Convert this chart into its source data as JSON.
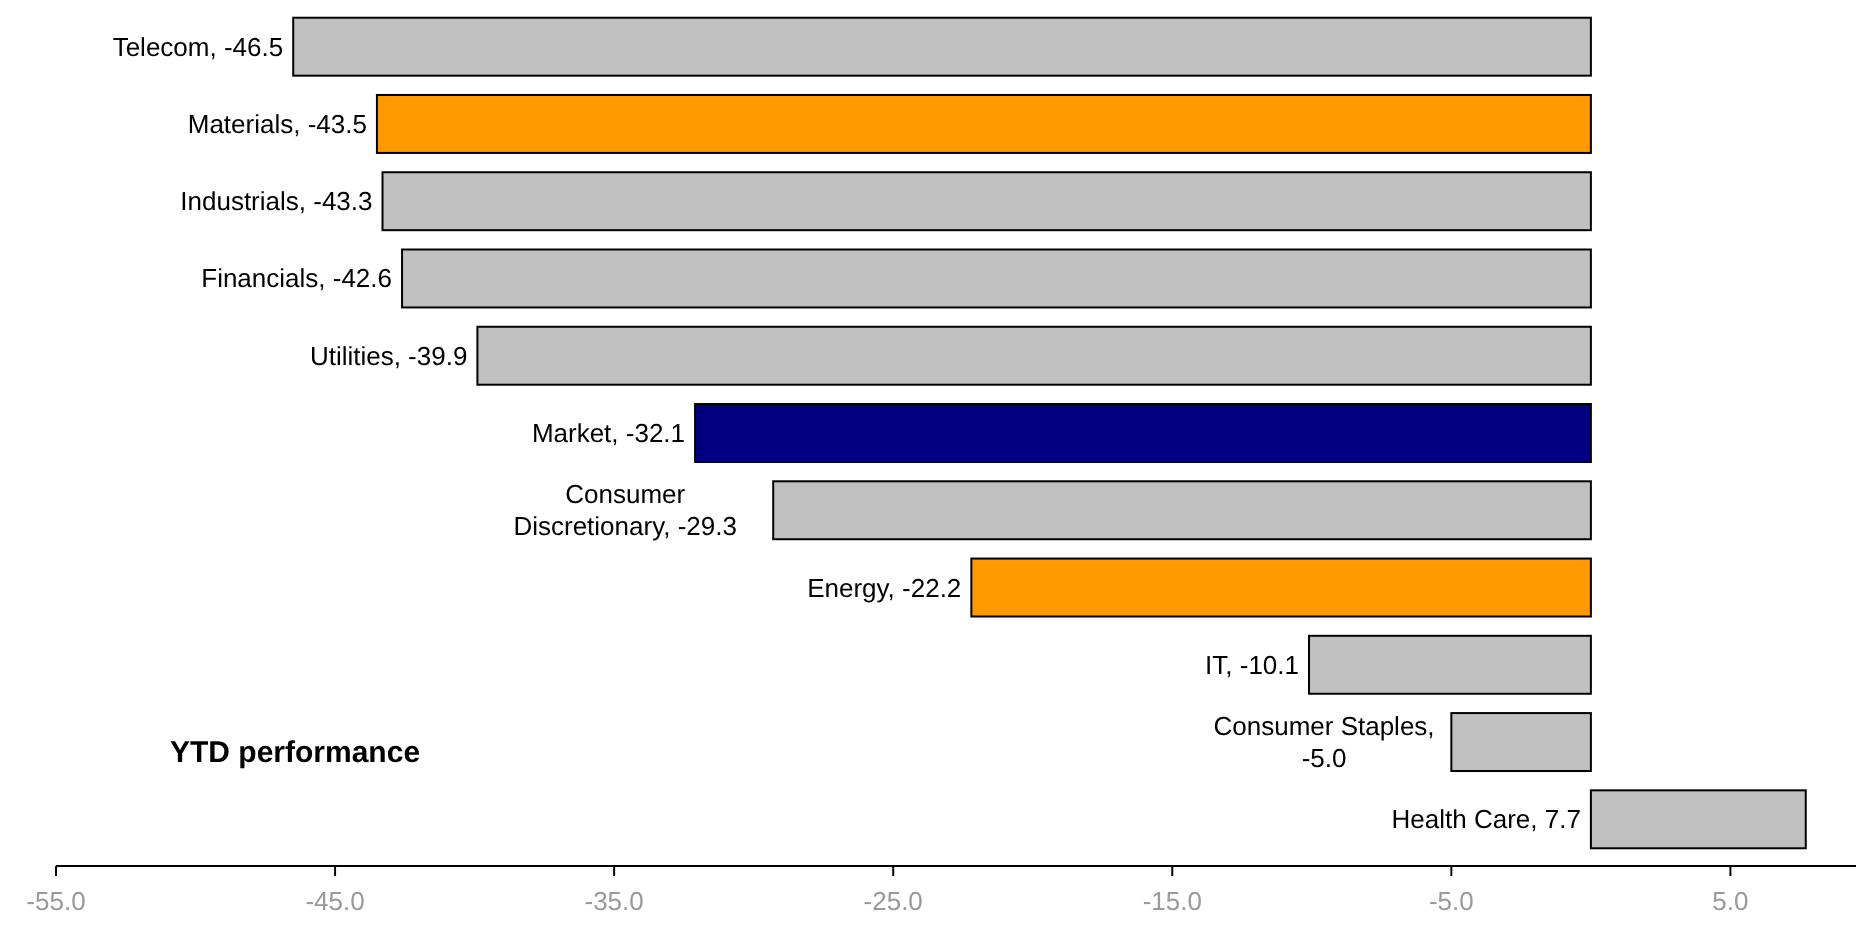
{
  "chart_data": {
    "type": "bar",
    "orientation": "horizontal",
    "title": "YTD performance",
    "categories": [
      "Telecom, -46.5",
      "Materials, -43.5",
      "Industrials, -43.3",
      "Financials, -42.6",
      "Utilities, -39.9",
      "Market, -32.1",
      "Consumer Discretionary, -29.3",
      "Energy, -22.2",
      "IT, -10.1",
      "Consumer Staples, -5.0",
      "Health Care, 7.7"
    ],
    "values": [
      -46.5,
      -43.5,
      -43.3,
      -42.6,
      -39.9,
      -32.1,
      -29.3,
      -22.2,
      -10.1,
      -5.0,
      7.7
    ],
    "colors": [
      "#c0c0c0",
      "#ff9900",
      "#c0c0c0",
      "#c0c0c0",
      "#c0c0c0",
      "#000080",
      "#c0c0c0",
      "#ff9900",
      "#c0c0c0",
      "#c0c0c0",
      "#c0c0c0"
    ],
    "xlim": [
      -55,
      9.5
    ],
    "xticks": [
      {
        "value": -55,
        "label": "-55.0"
      },
      {
        "value": -45,
        "label": "-45.0"
      },
      {
        "value": -35,
        "label": "-35.0"
      },
      {
        "value": -25,
        "label": "-25.0"
      },
      {
        "value": -15,
        "label": "-15.0"
      },
      {
        "value": -5,
        "label": "-5.0"
      },
      {
        "value": 5,
        "label": "5.0"
      }
    ]
  }
}
